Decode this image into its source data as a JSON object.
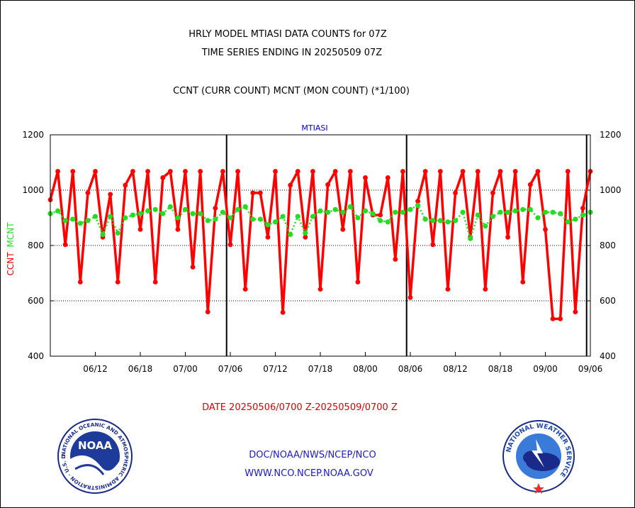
{
  "header": {
    "title1": "HRLY MODEL MTIASI DATA COUNTS for 07Z",
    "title2": "TIME SERIES ENDING IN 20250509 07Z",
    "subtitle": "CCNT (CURR COUNT) MCNT (MON COUNT) (*1/100)"
  },
  "footer": {
    "date_range": "DATE 20250506/0700 Z-20250509/0700 Z",
    "org": "DOC/NOAA/NWS/NCEP/NCO",
    "url": "WWW.NCO.NCEP.NOAA.GOV"
  },
  "logos": {
    "noaa_ring": "NATIONAL OCEANIC AND ATMOSPHERIC ADMINISTRATION · U.S. DEPARTMENT OF COMMERCE ·",
    "noaa_center": "NOAA",
    "nws_ring": "NATIONAL WEATHER SERVICE"
  },
  "colors": {
    "ccnt": "#ff0000",
    "mcnt": "#22dd22",
    "panel_title": "#0000cc",
    "footer_text": "#1a1acc",
    "date_text": "#e00000"
  },
  "chart_data": {
    "type": "line",
    "panel_title": "MTIASI",
    "ylabel_left": [
      "CCNT",
      "MCNT"
    ],
    "ylim": [
      400,
      1200
    ],
    "yticks": [
      400,
      600,
      800,
      1000,
      1200
    ],
    "gridlines_y": [
      600,
      800,
      1000
    ],
    "xlim": [
      0,
      72
    ],
    "xticks": [
      {
        "x": 6,
        "label": "06/12"
      },
      {
        "x": 12,
        "label": "06/18"
      },
      {
        "x": 18,
        "label": "07/00"
      },
      {
        "x": 24,
        "label": "07/06"
      },
      {
        "x": 30,
        "label": "07/12"
      },
      {
        "x": 36,
        "label": "07/18"
      },
      {
        "x": 42,
        "label": "08/00"
      },
      {
        "x": 48,
        "label": "08/06"
      },
      {
        "x": 54,
        "label": "08/12"
      },
      {
        "x": 60,
        "label": "08/18"
      },
      {
        "x": 66,
        "label": "09/00"
      },
      {
        "x": 72,
        "label": "09/06"
      }
    ],
    "day_lines_x": [
      23.5,
      47.5,
      71.5
    ],
    "series": [
      {
        "name": "CCNT",
        "values": [
          965,
          1068,
          803,
          1068,
          668,
          990,
          1068,
          830,
          985,
          668,
          1018,
          1068,
          858,
          1068,
          668,
          1045,
          1068,
          858,
          1068,
          722,
          1068,
          560,
          935,
          1068,
          803,
          1068,
          642,
          990,
          990,
          830,
          1068,
          558,
          1018,
          1068,
          830,
          1068,
          642,
          1020,
          1068,
          858,
          1068,
          668,
          1045,
          910,
          910,
          1045,
          750,
          1068,
          612,
          960,
          1068,
          803,
          1068,
          642,
          990,
          1068,
          830,
          1068,
          642,
          990,
          1068,
          830,
          1068,
          668,
          1020,
          1068,
          858,
          535,
          535,
          1068,
          560,
          935,
          1068
        ]
      },
      {
        "name": "MCNT",
        "values": [
          915,
          925,
          890,
          895,
          880,
          890,
          905,
          840,
          905,
          845,
          900,
          910,
          915,
          925,
          930,
          915,
          940,
          900,
          930,
          915,
          915,
          890,
          895,
          920,
          900,
          930,
          940,
          895,
          895,
          875,
          885,
          905,
          840,
          905,
          845,
          905,
          925,
          920,
          930,
          920,
          940,
          900,
          925,
          915,
          890,
          885,
          920,
          920,
          930,
          945,
          895,
          890,
          890,
          885,
          890,
          920,
          825,
          910,
          870,
          905,
          920,
          920,
          925,
          930,
          930,
          900,
          920,
          920,
          915,
          885,
          895,
          910,
          920
        ]
      }
    ]
  }
}
